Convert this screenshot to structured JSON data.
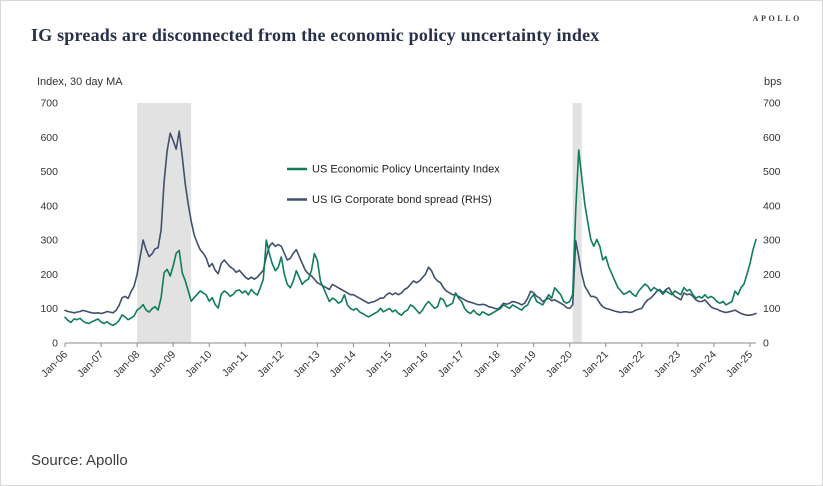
{
  "page": {
    "logo": "APOLLO",
    "title": "IG spreads are disconnected from the economic policy uncertainty index",
    "source": "Source: Apollo"
  },
  "chart_data": {
    "type": "line",
    "title": "IG spreads are disconnected from the economic policy uncertainty index",
    "left_axis_label": "Index, 30 day MA",
    "right_axis_label": "bps",
    "y_min": 0,
    "y_max": 700,
    "y_tick_step": 100,
    "x_start_month": "2006-01",
    "x_end_month": "2025-03",
    "x_tick_interval_months": 12,
    "x_tick_labels": [
      "Jan-06",
      "Jan-07",
      "Jan-08",
      "Jan-09",
      "Jan-10",
      "Jan-11",
      "Jan-12",
      "Jan-13",
      "Jan-14",
      "Jan-15",
      "Jan-16",
      "Jan-17",
      "Jan-18",
      "Jan-19",
      "Jan-20",
      "Jan-21",
      "Jan-22",
      "Jan-23",
      "Jan-24",
      "Jan-25"
    ],
    "recession_band_color": "#dddddd",
    "shaded_regions": [
      {
        "start_month_index": 24,
        "end_month_index": 42
      },
      {
        "start_month_index": 169,
        "end_month_index": 172
      }
    ],
    "legend_position": "inside-center-left",
    "series": [
      {
        "name": "US Economic Policy Uncertainty Index",
        "axis": "left",
        "color": "#0f7d5a",
        "values": [
          75,
          66,
          60,
          70,
          68,
          72,
          64,
          59,
          57,
          62,
          66,
          70,
          61,
          57,
          62,
          55,
          52,
          57,
          66,
          82,
          76,
          68,
          73,
          79,
          96,
          102,
          112,
          96,
          90,
          100,
          106,
          96,
          132,
          205,
          215,
          195,
          225,
          262,
          270,
          205,
          182,
          152,
          122,
          132,
          142,
          152,
          146,
          140,
          122,
          132,
          112,
          102,
          142,
          152,
          146,
          136,
          142,
          152,
          155,
          146,
          152,
          141,
          156,
          146,
          140,
          161,
          186,
          300,
          261,
          231,
          211,
          221,
          251,
          201,
          171,
          161,
          181,
          211,
          191,
          171,
          181,
          186,
          211,
          261,
          241,
          181,
          161,
          141,
          121,
          131,
          126,
          116,
          121,
          141,
          111,
          101,
          96,
          101,
          91,
          86,
          81,
          76,
          81,
          86,
          91,
          101,
          91,
          96,
          101,
          91,
          96,
          86,
          81,
          91,
          96,
          111,
          106,
          96,
          86,
          96,
          111,
          121,
          111,
          101,
          106,
          131,
          126,
          106,
          111,
          116,
          146,
          131,
          121,
          101,
          91,
          86,
          96,
          86,
          81,
          91,
          86,
          81,
          86,
          91,
          96,
          101,
          111,
          106,
          101,
          111,
          106,
          101,
          96,
          106,
          111,
          131,
          141,
          121,
          116,
          111,
          126,
          141,
          131,
          161,
          151,
          141,
          121,
          116,
          121,
          142,
          385,
          563,
          485,
          405,
          352,
          302,
          282,
          302,
          282,
          242,
          252,
          222,
          202,
          182,
          162,
          152,
          142,
          146,
          152,
          142,
          136,
          152,
          162,
          172,
          166,
          152,
          162,
          156,
          152,
          142,
          152,
          146,
          141,
          152,
          146,
          141,
          162,
          152,
          156,
          141,
          131,
          136,
          131,
          141,
          131,
          136,
          131,
          121,
          116,
          121,
          111,
          116,
          121,
          151,
          141,
          161,
          172,
          201,
          232,
          272,
          302
        ]
      },
      {
        "name": "US IG Corporate bond spread (RHS)",
        "axis": "right",
        "color": "#40506e",
        "values": [
          95,
          92,
          90,
          88,
          90,
          92,
          95,
          93,
          90,
          88,
          87,
          88,
          86,
          88,
          92,
          90,
          88,
          95,
          110,
          132,
          136,
          130,
          150,
          166,
          200,
          250,
          300,
          272,
          252,
          260,
          275,
          278,
          330,
          470,
          560,
          612,
          590,
          565,
          618,
          545,
          465,
          405,
          355,
          315,
          292,
          272,
          262,
          248,
          222,
          232,
          212,
          202,
          232,
          242,
          232,
          222,
          216,
          206,
          212,
          202,
          192,
          186,
          192,
          186,
          192,
          202,
          212,
          252,
          282,
          292,
          282,
          287,
          282,
          262,
          242,
          247,
          262,
          272,
          252,
          232,
          212,
          202,
          196,
          186,
          176,
          171,
          166,
          161,
          156,
          171,
          166,
          161,
          156,
          151,
          146,
          141,
          141,
          136,
          131,
          126,
          121,
          116,
          119,
          121,
          126,
          131,
          131,
          141,
          146,
          141,
          146,
          141,
          146,
          156,
          161,
          171,
          181,
          176,
          181,
          191,
          201,
          221,
          211,
          191,
          181,
          176,
          161,
          151,
          146,
          141,
          141,
          136,
          131,
          126,
          121,
          119,
          116,
          113,
          111,
          113,
          111,
          106,
          104,
          101,
          99,
          106,
          116,
          113,
          116,
          121,
          119,
          116,
          111,
          116,
          131,
          151,
          146,
          136,
          131,
          121,
          126,
          131,
          123,
          126,
          121,
          116,
          111,
          103,
          101,
          111,
          298,
          252,
          202,
          166,
          151,
          136,
          136,
          131,
          116,
          106,
          101,
          99,
          96,
          93,
          91,
          89,
          91,
          91,
          89,
          91,
          96,
          99,
          101,
          116,
          126,
          131,
          141,
          151,
          156,
          146,
          156,
          161,
          146,
          136,
          131,
          126,
          146,
          141,
          143,
          136,
          126,
          121,
          121,
          126,
          116,
          106,
          101,
          99,
          94,
          91,
          89,
          91,
          93,
          96,
          91,
          86,
          83,
          81,
          81,
          83,
          86
        ]
      }
    ]
  }
}
